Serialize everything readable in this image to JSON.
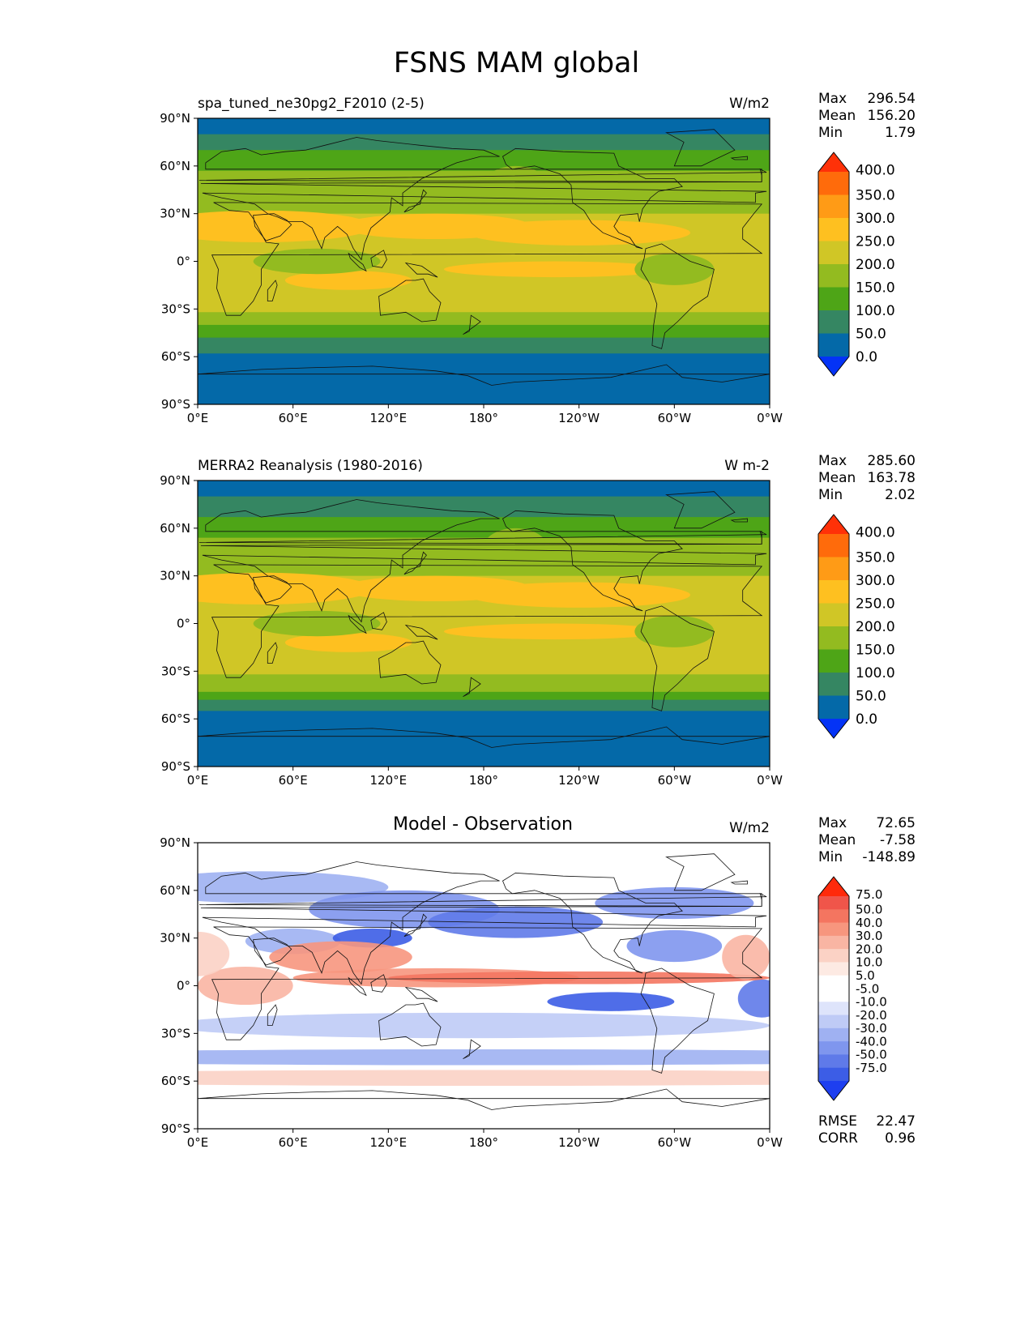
{
  "figure_title": "FSNS MAM global",
  "chart_data": [
    {
      "type": "heatmap",
      "title_left": "spa_tuned_ne30pg2_F2010 (2-5)",
      "units": "W/m2",
      "stats": {
        "max_label": "Max",
        "max": "296.54",
        "mean_label": "Mean",
        "mean": "156.20",
        "min_label": "Min",
        "min": "1.79"
      },
      "x_ticks": [
        "0°E",
        "60°E",
        "120°E",
        "180°",
        "120°W",
        "60°W",
        "0°W"
      ],
      "y_ticks": [
        "90°N",
        "60°N",
        "30°N",
        "0°",
        "30°S",
        "60°S",
        "90°S"
      ],
      "xlim": [
        0,
        360
      ],
      "ylim": [
        -90,
        90
      ],
      "colorbar": {
        "levels": [
          "400.0",
          "350.0",
          "300.0",
          "250.0",
          "200.0",
          "150.0",
          "100.0",
          "50.0",
          "0.0"
        ],
        "colors": [
          "#ff3108",
          "#ff6b0b",
          "#ff9b16",
          "#fec020",
          "#d0c626",
          "#93bb20",
          "#4ea517",
          "#358662",
          "#0469a8",
          "#0433f6"
        ]
      }
    },
    {
      "type": "heatmap",
      "title_left": "MERRA2 Reanalysis (1980-2016)",
      "units": "W m-2",
      "stats": {
        "max_label": "Max",
        "max": "285.60",
        "mean_label": "Mean",
        "mean": "163.78",
        "min_label": "Min",
        "min": "2.02"
      },
      "x_ticks": [
        "0°E",
        "60°E",
        "120°E",
        "180°",
        "120°W",
        "60°W",
        "0°W"
      ],
      "y_ticks": [
        "90°N",
        "60°N",
        "30°N",
        "0°",
        "30°S",
        "60°S",
        "90°S"
      ],
      "xlim": [
        0,
        360
      ],
      "ylim": [
        -90,
        90
      ],
      "colorbar": {
        "levels": [
          "400.0",
          "350.0",
          "300.0",
          "250.0",
          "200.0",
          "150.0",
          "100.0",
          "50.0",
          "0.0"
        ],
        "colors": [
          "#ff3108",
          "#ff6b0b",
          "#ff9b16",
          "#fec020",
          "#d0c626",
          "#93bb20",
          "#4ea517",
          "#358662",
          "#0469a8",
          "#0433f6"
        ]
      }
    },
    {
      "type": "heatmap",
      "title_center": "Model - Observation",
      "units": "W/m2",
      "stats": {
        "max_label": "Max",
        "max": "72.65",
        "mean_label": "Mean",
        "mean": "-7.58",
        "min_label": "Min",
        "min": "-148.89"
      },
      "metrics": {
        "rmse_label": "RMSE",
        "rmse": "22.47",
        "corr_label": "CORR",
        "corr": "0.96"
      },
      "x_ticks": [
        "0°E",
        "60°E",
        "120°E",
        "180°",
        "120°W",
        "60°W",
        "0°W"
      ],
      "y_ticks": [
        "90°N",
        "60°N",
        "30°N",
        "0°",
        "30°S",
        "60°S",
        "90°S"
      ],
      "xlim": [
        0,
        360
      ],
      "ylim": [
        -90,
        90
      ],
      "colorbar": {
        "levels": [
          "75.0",
          "50.0",
          "40.0",
          "30.0",
          "20.0",
          "10.0",
          "5.0",
          "-5.0",
          "-10.0",
          "-20.0",
          "-30.0",
          "-40.0",
          "-50.0",
          "-75.0"
        ],
        "colors": [
          "#ff2a0b",
          "#f0554a",
          "#f47560",
          "#f7967e",
          "#f9b5a3",
          "#fbd2c5",
          "#fdeae3",
          "#ffffff",
          "#ffffff",
          "#dee4fb",
          "#bfcbf6",
          "#9fb1f2",
          "#7f96ee",
          "#5f7ae9",
          "#3c5de6",
          "#1e3ff0"
        ]
      }
    }
  ]
}
